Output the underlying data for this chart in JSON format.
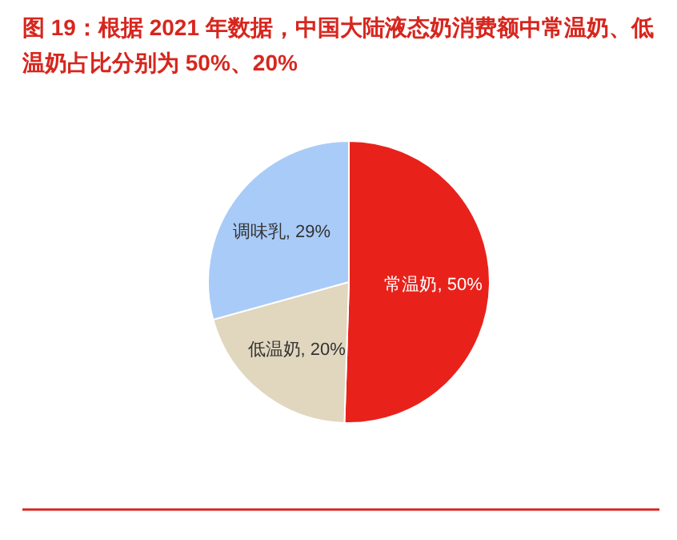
{
  "chart_data": {
    "type": "pie",
    "title": "图 19：根据 2021 年数据，中国大陆液态奶消费额中常温奶、低温奶占比分别为 50%、20%",
    "categories": [
      "常温奶",
      "低温奶",
      "调味乳"
    ],
    "values": [
      50,
      20,
      29
    ],
    "colors": [
      "#e8221b",
      "#e1d6be",
      "#a9cbf8"
    ],
    "value_labels": [
      "50%",
      "20%",
      "29%"
    ]
  }
}
